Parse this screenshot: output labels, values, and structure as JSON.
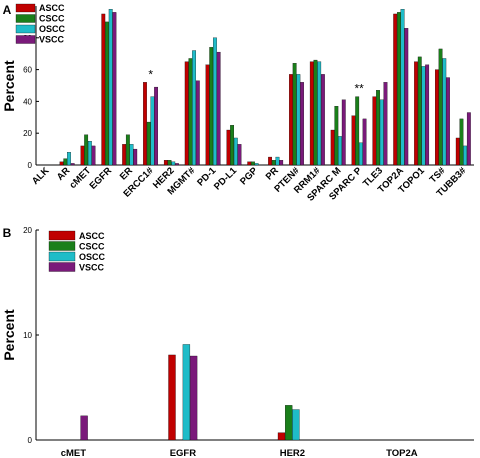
{
  "colors": {
    "ASCC": "#c00000",
    "CSCC": "#1a7f1a",
    "OSCC": "#1fbcc8",
    "VSCC": "#7a1a7a"
  },
  "chart_data": [
    {
      "panel": "A",
      "type": "bar",
      "ylabel": "Percent",
      "ylim": [
        0,
        100
      ],
      "yticks": [
        0,
        20,
        40,
        60,
        80
      ],
      "legend": "top-left",
      "categories": [
        "ALK",
        "AR",
        "cMET",
        "EGFR",
        "ER",
        "ERCC1#",
        "HER2",
        "MGMT#",
        "PD-1",
        "PD-L1",
        "PGP",
        "PR",
        "PTEN#",
        "RRM1#",
        "SPARC M",
        "SPARC P",
        "TLE3",
        "TOP2A",
        "TOPO1",
        "TS#",
        "TUBB3#"
      ],
      "series": [
        {
          "name": "ASCC",
          "values": [
            0,
            2,
            12,
            95,
            13,
            52,
            3,
            65,
            63,
            22,
            2,
            5,
            57,
            65,
            22,
            31,
            43,
            95,
            65,
            60,
            17
          ]
        },
        {
          "name": "CSCC",
          "values": [
            0,
            4,
            19,
            90,
            19,
            27,
            3,
            67,
            74,
            25,
            2,
            3,
            64,
            66,
            37,
            43,
            47,
            96,
            68,
            73,
            29
          ]
        },
        {
          "name": "OSCC",
          "values": [
            0,
            8,
            15,
            98,
            13,
            43,
            2,
            72,
            80,
            17,
            1,
            5,
            57,
            65,
            18,
            14,
            41,
            98,
            62,
            67,
            12
          ]
        },
        {
          "name": "VSCC",
          "values": [
            0,
            1,
            12,
            96,
            10,
            49,
            1,
            53,
            71,
            13,
            0,
            3,
            52,
            57,
            41,
            29,
            52,
            86,
            63,
            55,
            33
          ]
        }
      ],
      "annotations": [
        {
          "text": "*",
          "category": "ERCC1#"
        },
        {
          "text": "**",
          "category": "SPARC P"
        }
      ]
    },
    {
      "panel": "B",
      "type": "bar",
      "ylabel": "Percent",
      "ylim": [
        0,
        20
      ],
      "yticks": [
        0,
        10,
        20
      ],
      "legend": "top-left",
      "categories": [
        "cMET",
        "EGFR",
        "HER2",
        "TOP2A"
      ],
      "series": [
        {
          "name": "ASCC",
          "values": [
            0,
            8.1,
            0.7,
            0
          ]
        },
        {
          "name": "CSCC",
          "values": [
            0,
            0,
            3.3,
            0
          ]
        },
        {
          "name": "OSCC",
          "values": [
            0,
            9.1,
            2.9,
            0
          ]
        },
        {
          "name": "VSCC",
          "values": [
            2.3,
            8.0,
            0,
            0
          ]
        }
      ]
    }
  ]
}
